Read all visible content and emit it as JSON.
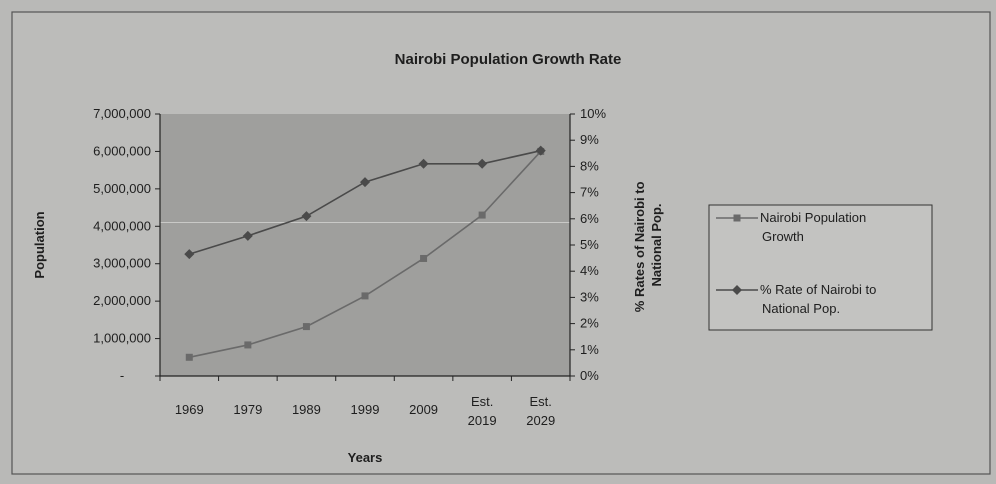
{
  "chart_data": {
    "type": "line",
    "title": "Nairobi Population Growth Rate",
    "xlabel": "Years",
    "ylabel": "Population",
    "y2label": "% Rates of Nairobi to National Pop.",
    "categories": [
      [
        "1969"
      ],
      [
        "1979"
      ],
      [
        "1989"
      ],
      [
        "1999"
      ],
      [
        "2009"
      ],
      [
        "Est.",
        "2019"
      ],
      [
        "Est.",
        "2029"
      ]
    ],
    "ylim": [
      0,
      7000000
    ],
    "y2lim": [
      0,
      10
    ],
    "yticks": [
      "-",
      "1,000,000",
      "2,000,000",
      "3,000,000",
      "4,000,000",
      "5,000,000",
      "6,000,000",
      "7,000,000"
    ],
    "y2ticks": [
      "0%",
      "1%",
      "2%",
      "3%",
      "4%",
      "5%",
      "6%",
      "7%",
      "8%",
      "9%",
      "10%"
    ],
    "series": [
      {
        "name": "Nairobi Population Growth",
        "legend_lines": [
          "Nairobi Population",
          "Growth"
        ],
        "axis": "left",
        "marker": "square",
        "color": "#6a6a6a",
        "values": [
          500000,
          830000,
          1320000,
          2140000,
          3140000,
          4300000,
          6000000
        ]
      },
      {
        "name": "% Rate of Nairobi to National Pop.",
        "legend_lines": [
          "% Rate of Nairobi to",
          "National Pop."
        ],
        "axis": "right",
        "marker": "diamond",
        "color": "#4a4a4a",
        "values": [
          4.65,
          5.35,
          6.1,
          7.4,
          8.1,
          8.1,
          8.6
        ]
      }
    ],
    "grid": true,
    "legend_position": "right",
    "colors": {
      "background": "#b9b9b7",
      "plot_area": "#9f9f9d",
      "gridline": "#c9c9c7"
    }
  }
}
